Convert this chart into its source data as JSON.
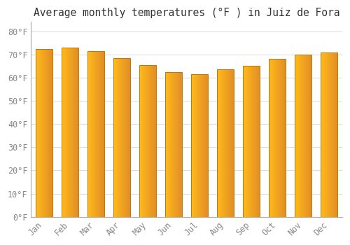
{
  "title": "Average monthly temperatures (°F ) in Juiz de Fora",
  "months": [
    "Jan",
    "Feb",
    "Mar",
    "Apr",
    "May",
    "Jun",
    "Jul",
    "Aug",
    "Sep",
    "Oct",
    "Nov",
    "Dec"
  ],
  "values": [
    72.5,
    73.0,
    71.5,
    68.5,
    65.5,
    62.5,
    61.5,
    63.5,
    65.0,
    68.0,
    70.0,
    71.0
  ],
  "bar_color_left": "#FFD44A",
  "bar_color_right": "#F5A000",
  "bar_edge_color": "#C07800",
  "ylim": [
    0,
    84
  ],
  "ytick_step": 10,
  "background_color": "#FFFFFF",
  "plot_bg_color": "#FFFFFF",
  "grid_color": "#DDDDDD",
  "title_fontsize": 10.5,
  "tick_fontsize": 8.5,
  "font_family": "monospace",
  "tick_color": "#888888",
  "bar_width": 0.65
}
